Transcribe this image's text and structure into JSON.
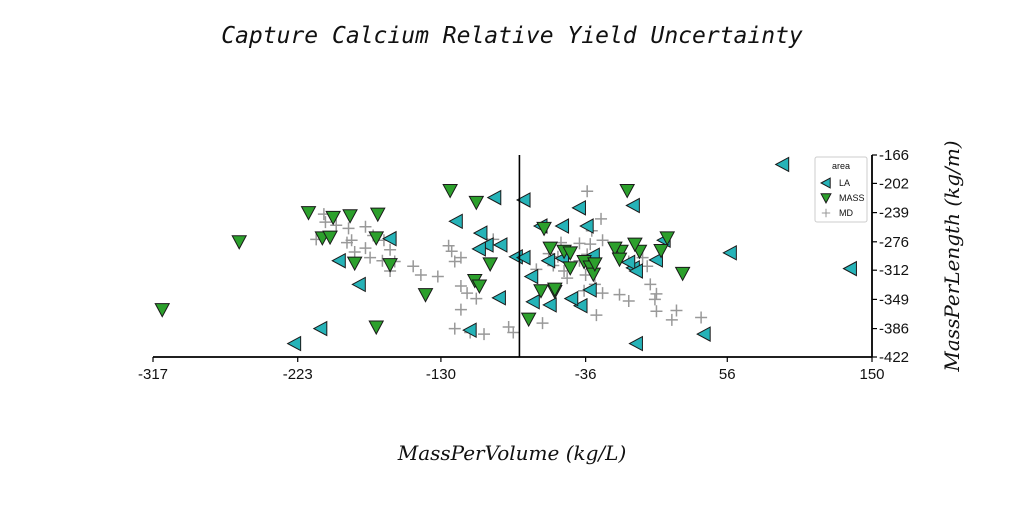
{
  "chart_data": {
    "type": "scatter",
    "title": "Capture Calcium Relative Yield Uncertainty",
    "xlabel": "MassPerVolume (kg/L)",
    "ylabel": "MassPerLength (kg/m)",
    "xlim": [
      -317,
      150
    ],
    "ylim": [
      -422,
      -166
    ],
    "x_ticks": [
      "-317",
      "-223",
      "-130",
      "-36",
      "56",
      "150"
    ],
    "y_ticks": [
      "-166",
      "-202",
      "-239",
      "-276",
      "-312",
      "-349",
      "-386",
      "-422"
    ],
    "vline_x": -79,
    "grid": false,
    "legend": {
      "title": "area",
      "position": "top-right"
    },
    "series": [
      {
        "name": "LA",
        "marker": "triangle-left",
        "color": "#26b3b8",
        "points": [
          [
            92,
            -178
          ],
          [
            -35,
            -256
          ],
          [
            -120,
            -250
          ],
          [
            -76,
            -223
          ],
          [
            -95,
            -220
          ],
          [
            -65,
            -256
          ],
          [
            -51,
            -256
          ],
          [
            -31,
            -293
          ],
          [
            -40,
            -233
          ],
          [
            -5,
            -230
          ],
          [
            -100,
            -280
          ],
          [
            -105,
            -285
          ],
          [
            -81,
            -295
          ],
          [
            -76,
            -296
          ],
          [
            -91,
            -280
          ],
          [
            -104,
            -265
          ],
          [
            -5,
            -309
          ],
          [
            15,
            -274
          ],
          [
            10,
            -299
          ],
          [
            58,
            -290
          ],
          [
            136,
            -310
          ],
          [
            -196,
            -300
          ],
          [
            -183,
            -330
          ],
          [
            -163,
            -272
          ],
          [
            -71,
            -320
          ],
          [
            -70,
            -352
          ],
          [
            -39,
            -357
          ],
          [
            -33,
            -337
          ],
          [
            -8,
            -302
          ],
          [
            -3,
            -313
          ],
          [
            -92,
            -347
          ],
          [
            -111,
            -388
          ],
          [
            -208,
            -386
          ],
          [
            -59,
            -356
          ],
          [
            -225,
            -405
          ],
          [
            41,
            -393
          ],
          [
            -3,
            -405
          ],
          [
            -60,
            -300
          ],
          [
            -51,
            -297
          ],
          [
            -45,
            -348
          ]
        ]
      },
      {
        "name": "MASS",
        "marker": "triangle-down",
        "color": "#2ca02c",
        "points": [
          [
            -9,
            -211
          ],
          [
            -124,
            -211
          ],
          [
            -107,
            -226
          ],
          [
            -261,
            -276
          ],
          [
            -216,
            -239
          ],
          [
            -200,
            -245
          ],
          [
            -189,
            -243
          ],
          [
            -171,
            -241
          ],
          [
            -207,
            -271
          ],
          [
            -202,
            -270
          ],
          [
            -172,
            -271
          ],
          [
            -186,
            -303
          ],
          [
            -163,
            -305
          ],
          [
            -108,
            -325
          ],
          [
            -105,
            -332
          ],
          [
            -140,
            -343
          ],
          [
            -65,
            -338
          ],
          [
            -56,
            -339
          ],
          [
            -311,
            -362
          ],
          [
            -172,
            -384
          ],
          [
            -73,
            -374
          ],
          [
            -63,
            -259
          ],
          [
            -59,
            -284
          ],
          [
            -50,
            -288
          ],
          [
            -46,
            -290
          ],
          [
            -46,
            -309
          ],
          [
            -37,
            -301
          ],
          [
            -33,
            -308
          ],
          [
            -31,
            -317
          ],
          [
            -13,
            -288
          ],
          [
            -1,
            -288
          ],
          [
            13,
            -287
          ],
          [
            17,
            -271
          ],
          [
            27,
            -316
          ],
          [
            -4,
            -279
          ],
          [
            -17,
            -284
          ],
          [
            -98,
            -304
          ],
          [
            -14,
            -298
          ],
          [
            -30,
            -304
          ],
          [
            -56,
            -336
          ]
        ]
      },
      {
        "name": "MD",
        "marker": "plus",
        "color": "#999999",
        "points": [
          [
            -35,
            -212
          ],
          [
            -26,
            -247
          ],
          [
            -32,
            -262
          ],
          [
            -25,
            -274
          ],
          [
            -33,
            -279
          ],
          [
            -40,
            -278
          ],
          [
            -52,
            -277
          ],
          [
            -35,
            -292
          ],
          [
            -49,
            -297
          ],
          [
            -40,
            -300
          ],
          [
            -57,
            -306
          ],
          [
            -68,
            -311
          ],
          [
            -50,
            -313
          ],
          [
            -36,
            -318
          ],
          [
            -48,
            -322
          ],
          [
            -37,
            -338
          ],
          [
            -30,
            -330
          ],
          [
            -25,
            -341
          ],
          [
            -14,
            -343
          ],
          [
            -8,
            -351
          ],
          [
            9,
            -349
          ],
          [
            10,
            -364
          ],
          [
            23,
            -363
          ],
          [
            20,
            -375
          ],
          [
            39,
            -372
          ],
          [
            -29,
            -369
          ],
          [
            -64,
            -379
          ],
          [
            -86,
            -384
          ],
          [
            -83,
            -391
          ],
          [
            -102,
            -393
          ],
          [
            -111,
            -391
          ],
          [
            -121,
            -386
          ],
          [
            -117,
            -362
          ],
          [
            -107,
            -348
          ],
          [
            -113,
            -341
          ],
          [
            -117,
            -332
          ],
          [
            -132,
            -320
          ],
          [
            -143,
            -318
          ],
          [
            -148,
            -307
          ],
          [
            -160,
            -301
          ],
          [
            -163,
            -286
          ],
          [
            -167,
            -274
          ],
          [
            -174,
            -268
          ],
          [
            -179,
            -257
          ],
          [
            -190,
            -259
          ],
          [
            -198,
            -255
          ],
          [
            -205,
            -251
          ],
          [
            -206,
            -241
          ],
          [
            -211,
            -273
          ],
          [
            -163,
            -313
          ],
          [
            -168,
            -300
          ],
          [
            -176,
            -296
          ],
          [
            -179,
            -284
          ],
          [
            -188,
            -274
          ],
          [
            -191,
            -277
          ],
          [
            -186,
            -289
          ],
          [
            -121,
            -301
          ],
          [
            -117,
            -296
          ],
          [
            -123,
            -288
          ],
          [
            -125,
            -281
          ],
          [
            -100,
            -279
          ],
          [
            -96,
            -273
          ],
          [
            -60,
            -291
          ],
          [
            -54,
            -295
          ],
          [
            -15,
            -290
          ],
          [
            -8,
            -301
          ],
          [
            1,
            -296
          ],
          [
            4,
            -307
          ],
          [
            6,
            -330
          ],
          [
            10,
            -342
          ]
        ]
      }
    ]
  }
}
